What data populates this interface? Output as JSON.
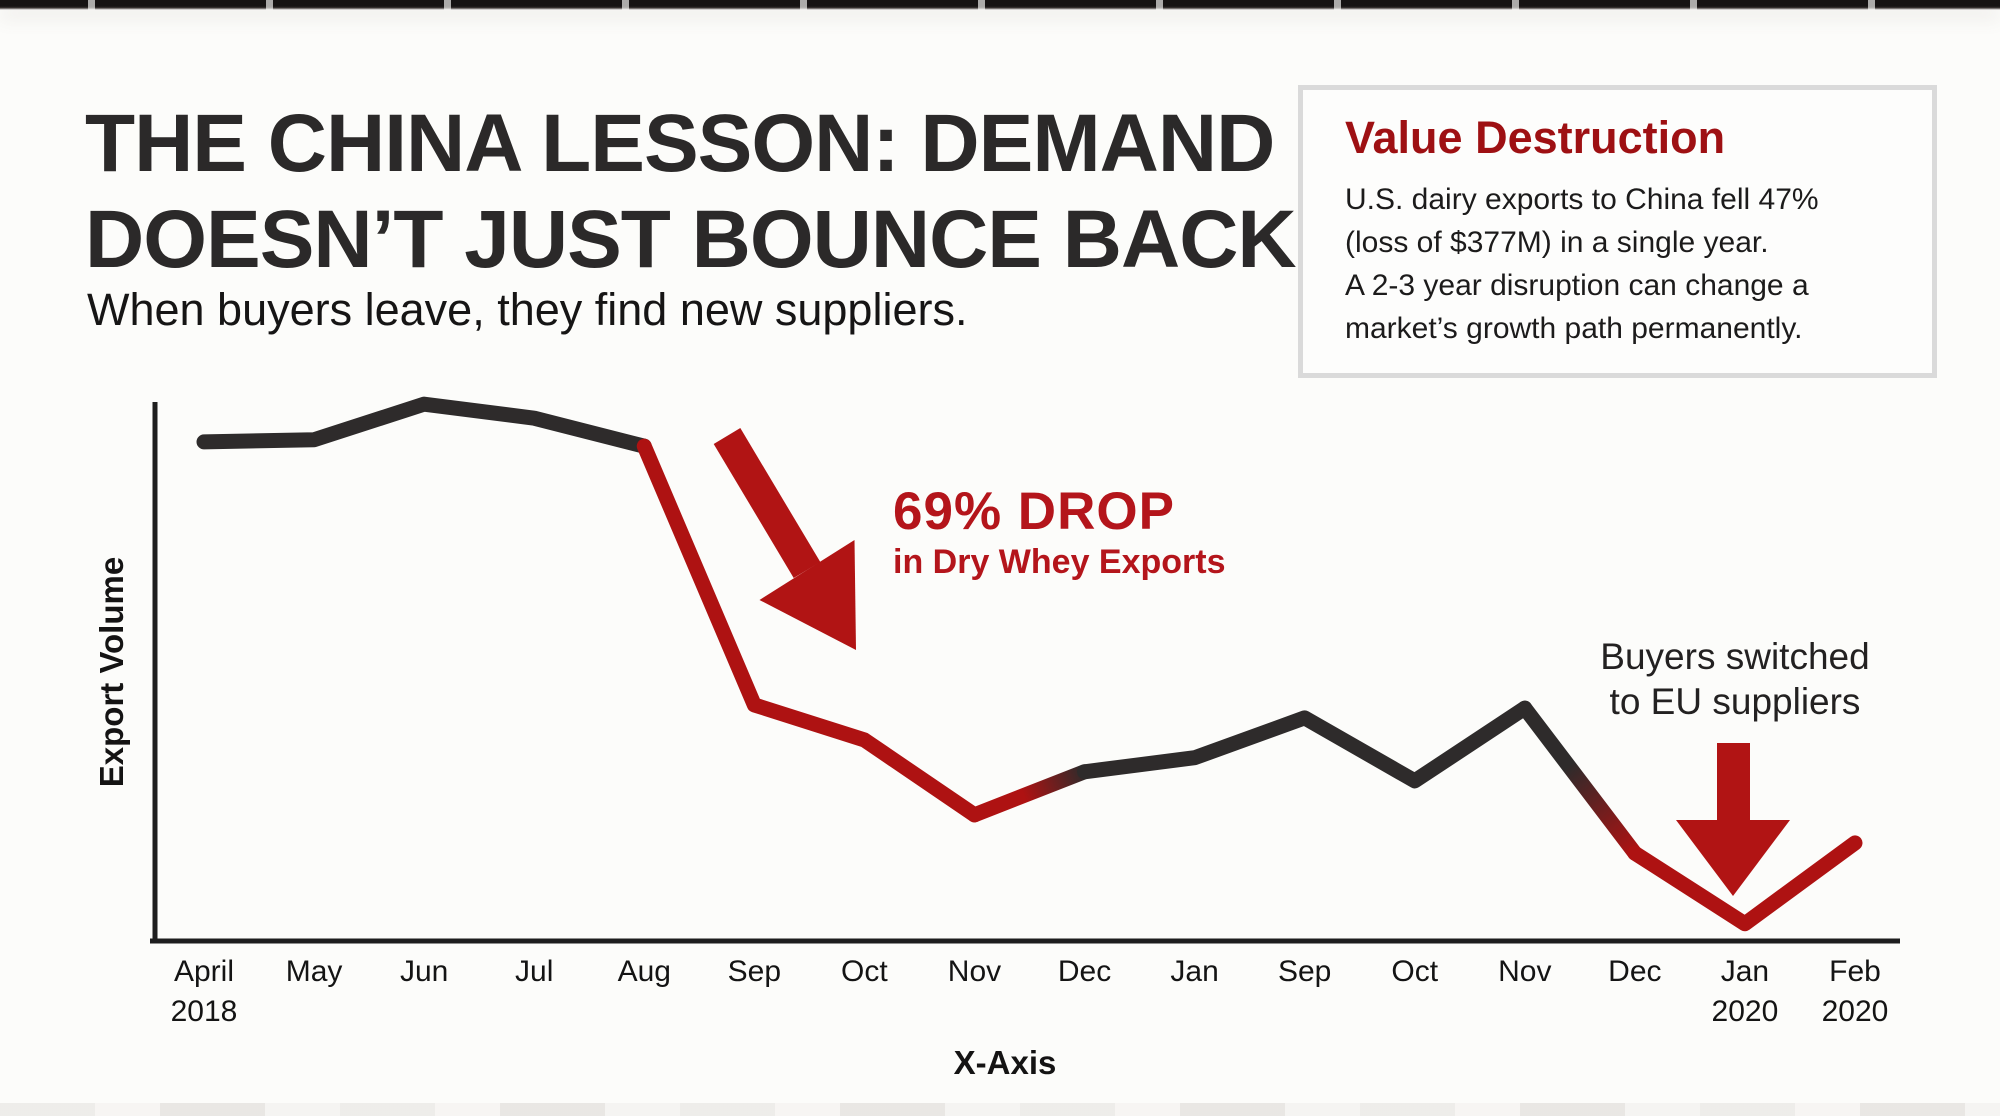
{
  "header": {
    "title_line1": "THE CHINA LESSON: DEMAND",
    "title_line2": "DOESN’T JUST BOUNCE BACK",
    "subtitle": "When buyers leave, they find new suppliers."
  },
  "callout": {
    "heading": "Value Destruction",
    "lines": [
      "U.S. dairy exports to China fell 47%",
      "(loss of $377M) in a single year.",
      "A 2-3 year disruption can change a",
      "market’s growth path permanently."
    ]
  },
  "annotations": {
    "drop_headline": "69% DROP",
    "drop_subline": "in Dry Whey Exports",
    "buyers_line1": "Buyers switched",
    "buyers_line2": "to EU suppliers"
  },
  "colors": {
    "line_dark": "#2e2b2b",
    "line_red": "#ae1212",
    "arrow_red": "#b11414",
    "axis": "#1e1e1e",
    "heading_red": "#9e1013",
    "annotation_red": "#b4151b"
  },
  "chart_data": {
    "type": "line",
    "title": "",
    "xlabel": "X-Axis",
    "ylabel": "Export Volume",
    "grid": false,
    "legend": "none",
    "ylim": [
      0,
      100
    ],
    "y_axis_ticks": "none (qualitative volume scale, 0 = axis baseline, 100 = axis top)",
    "x_ticks": [
      {
        "label": "April",
        "year": "2018"
      },
      {
        "label": "May"
      },
      {
        "label": "Jun"
      },
      {
        "label": "Jul"
      },
      {
        "label": "Aug"
      },
      {
        "label": "Sep"
      },
      {
        "label": "Oct"
      },
      {
        "label": "Nov"
      },
      {
        "label": "Dec"
      },
      {
        "label": "Jan"
      },
      {
        "label": "Sep"
      },
      {
        "label": "Oct"
      },
      {
        "label": "Nov"
      },
      {
        "label": "Dec"
      },
      {
        "label": "Jan",
        "year": "2020"
      },
      {
        "label": "Feb",
        "year": "2020"
      }
    ],
    "series": [
      {
        "name": "Dry whey export volume (relative)",
        "values": [
          92.6,
          93.0,
          99.6,
          97.0,
          91.8,
          43.8,
          37.3,
          23.4,
          31.4,
          34.0,
          41.4,
          29.7,
          43.2,
          16.3,
          3.2,
          18.2
        ]
      }
    ],
    "segments": [
      {
        "from": 0,
        "to": 4,
        "stops": [
          [
            0,
            "dark"
          ],
          [
            1,
            "dark"
          ]
        ]
      },
      {
        "from": 4,
        "to": 7,
        "stops": [
          [
            0,
            "red"
          ],
          [
            1,
            "red"
          ]
        ]
      },
      {
        "from": 7,
        "to": 8,
        "stops": [
          [
            0,
            "red"
          ],
          [
            0.45,
            "red"
          ],
          [
            1,
            "dark"
          ]
        ]
      },
      {
        "from": 8,
        "to": 12,
        "stops": [
          [
            0,
            "dark"
          ],
          [
            1,
            "dark"
          ]
        ]
      },
      {
        "from": 12,
        "to": 13,
        "stops": [
          [
            0,
            "dark"
          ],
          [
            0.4,
            "dark"
          ],
          [
            1,
            "red"
          ]
        ]
      },
      {
        "from": 13,
        "to": 15,
        "stops": [
          [
            0,
            "red"
          ],
          [
            1,
            "red"
          ]
        ]
      }
    ],
    "annotations_meaning": [
      "69% DROP in Dry Whey Exports (red arrow at Aug-Sep 2018 plunge)",
      "Buyers switched to EU suppliers (red arrow at Jan 2020 minimum)"
    ]
  }
}
